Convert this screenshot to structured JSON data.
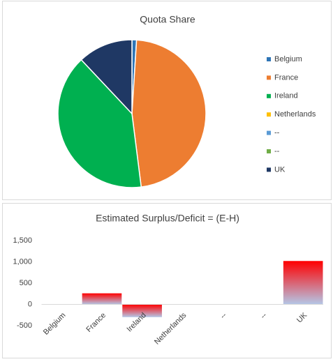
{
  "chart_data": [
    {
      "type": "pie",
      "title": "Quota Share",
      "categories": [
        "Belgium",
        "France",
        "Ireland",
        "Netherlands",
        "--",
        "--",
        "UK"
      ],
      "values": [
        1,
        47,
        40,
        0,
        0,
        0,
        12
      ],
      "colors": [
        "#2e75b6",
        "#ed7d31",
        "#00b050",
        "#ffc000",
        "#5b9bd5",
        "#70ad47",
        "#1f3864"
      ],
      "legend": "right"
    },
    {
      "type": "bar",
      "title": "Estimated Surplus/Deficit = (E-H)",
      "categories": [
        "Belgium",
        "France",
        "Ireland",
        "Netherlands",
        "--",
        "--",
        "UK"
      ],
      "values": [
        0,
        260,
        -300,
        0,
        0,
        0,
        1020
      ],
      "gradient": [
        "#ff0000",
        "#b4c7e7"
      ],
      "ylim": [
        -500,
        1500
      ],
      "yticks": [
        -500,
        0,
        500,
        {
          "value": 1000,
          "label": "1,000"
        },
        {
          "value": 1500,
          "label": "1,500"
        }
      ],
      "grid": false
    }
  ]
}
